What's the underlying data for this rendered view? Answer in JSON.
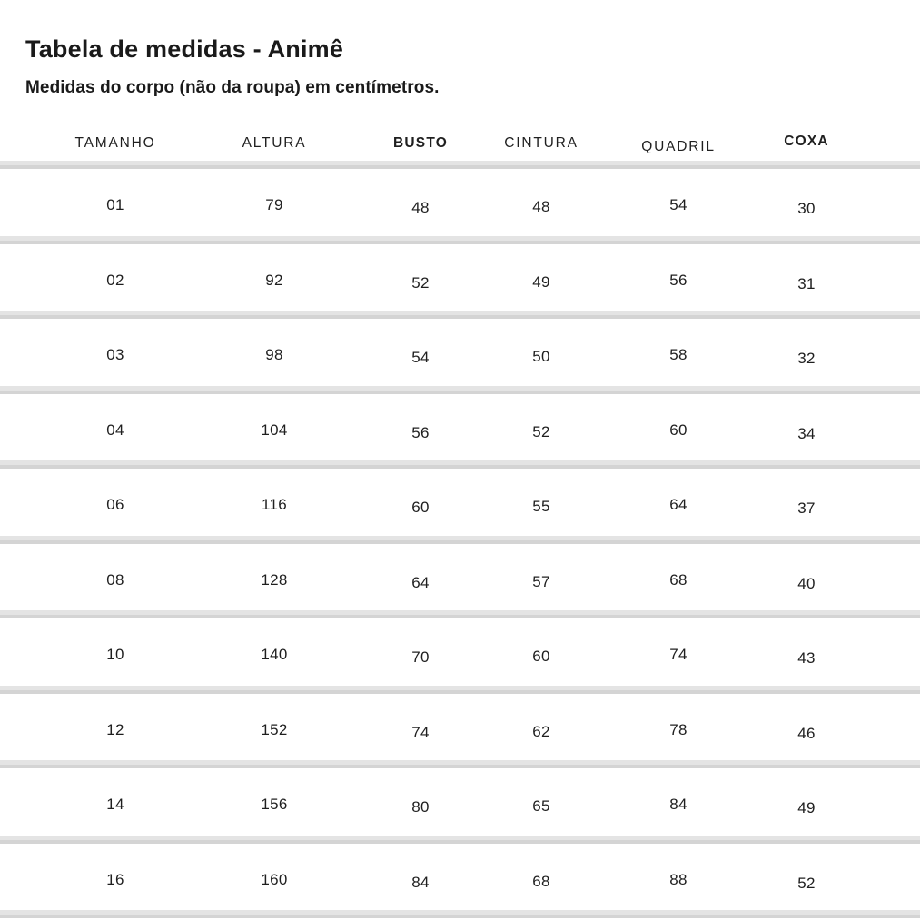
{
  "page": {
    "title": "Tabela de medidas - Animê",
    "subtitle": "Medidas do corpo (não da roupa) em centímetros."
  },
  "table": {
    "columns": [
      "TAMANHO",
      "ALTURA",
      "BUSTO",
      "CINTURA",
      "QUADRIL",
      "COXA"
    ],
    "bold_columns": [
      "BUSTO",
      "COXA"
    ],
    "rows": [
      [
        "01",
        "79",
        "48",
        "48",
        "54",
        "30"
      ],
      [
        "02",
        "92",
        "52",
        "49",
        "56",
        "31"
      ],
      [
        "03",
        "98",
        "54",
        "50",
        "58",
        "32"
      ],
      [
        "04",
        "104",
        "56",
        "52",
        "60",
        "34"
      ],
      [
        "06",
        "116",
        "60",
        "55",
        "64",
        "37"
      ],
      [
        "08",
        "128",
        "64",
        "57",
        "68",
        "40"
      ],
      [
        "10",
        "140",
        "70",
        "60",
        "74",
        "43"
      ],
      [
        "12",
        "152",
        "74",
        "62",
        "78",
        "46"
      ],
      [
        "14",
        "156",
        "80",
        "65",
        "84",
        "49"
      ],
      [
        "16",
        "160",
        "84",
        "68",
        "88",
        "52"
      ]
    ]
  },
  "colors": {
    "background": "#ffffff",
    "text": "#1f1f1f",
    "divider": "#e4e4e4",
    "divider_edge": "#d4d4d4"
  }
}
